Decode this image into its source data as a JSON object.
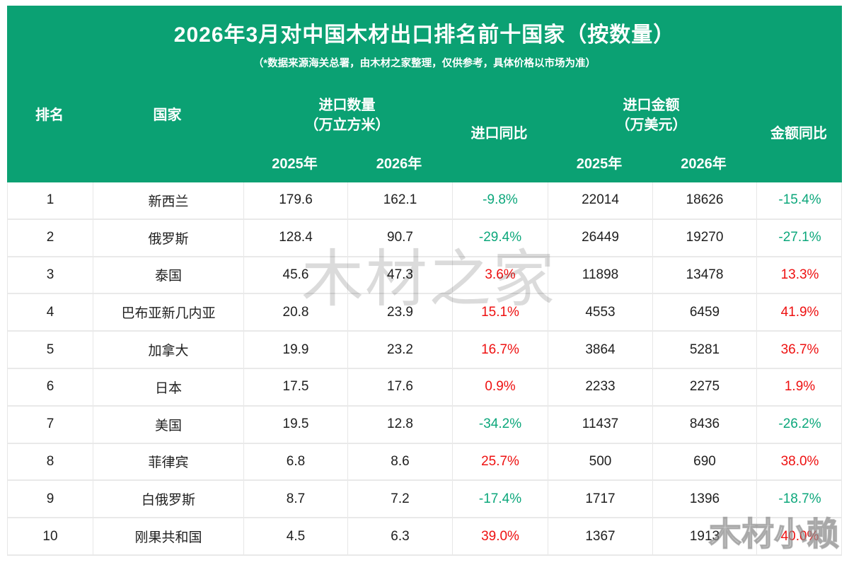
{
  "banner": {
    "title": "2026年3月对中国木材出口排名前十国家（按数量）",
    "subtitle": "（*数据来源海关总署，由木材之家整理，仅供参考，具体价格以市场为准）"
  },
  "table": {
    "headers": {
      "rank": "排名",
      "country": "国家",
      "qty_group_line1": "进口数量",
      "qty_group_line2": "（万立方米）",
      "import_yoy": "进口同比",
      "amount_group_line1": "进口金额",
      "amount_group_line2": "（万美元）",
      "amount_yoy": "金额同比",
      "year_2025": "2025年",
      "year_2026": "2026年"
    }
  },
  "chart_data": {
    "type": "table",
    "title": "2026年3月对中国木材出口排名前十国家（按数量）",
    "columns": [
      "排名",
      "国家",
      "进口数量2025年(万立方米)",
      "进口数量2026年(万立方米)",
      "进口同比",
      "进口金额2025年(万美元)",
      "进口金额2026年(万美元)",
      "金额同比"
    ],
    "rows": [
      {
        "rank": "1",
        "country": "新西兰",
        "qty_2025": "179.6",
        "qty_2026": "162.1",
        "import_yoy": "-9.8%",
        "import_yoy_dir": "down",
        "amt_2025": "22014",
        "amt_2026": "18626",
        "amount_yoy": "-15.4%",
        "amount_yoy_dir": "down"
      },
      {
        "rank": "2",
        "country": "俄罗斯",
        "qty_2025": "128.4",
        "qty_2026": "90.7",
        "import_yoy": "-29.4%",
        "import_yoy_dir": "down",
        "amt_2025": "26449",
        "amt_2026": "19270",
        "amount_yoy": "-27.1%",
        "amount_yoy_dir": "down"
      },
      {
        "rank": "3",
        "country": "泰国",
        "qty_2025": "45.6",
        "qty_2026": "47.3",
        "import_yoy": "3.6%",
        "import_yoy_dir": "up",
        "amt_2025": "11898",
        "amt_2026": "13478",
        "amount_yoy": "13.3%",
        "amount_yoy_dir": "up"
      },
      {
        "rank": "4",
        "country": "巴布亚新几内亚",
        "qty_2025": "20.8",
        "qty_2026": "23.9",
        "import_yoy": "15.1%",
        "import_yoy_dir": "up",
        "amt_2025": "4553",
        "amt_2026": "6459",
        "amount_yoy": "41.9%",
        "amount_yoy_dir": "up"
      },
      {
        "rank": "5",
        "country": "加拿大",
        "qty_2025": "19.9",
        "qty_2026": "23.2",
        "import_yoy": "16.7%",
        "import_yoy_dir": "up",
        "amt_2025": "3864",
        "amt_2026": "5281",
        "amount_yoy": "36.7%",
        "amount_yoy_dir": "up"
      },
      {
        "rank": "6",
        "country": "日本",
        "qty_2025": "17.5",
        "qty_2026": "17.6",
        "import_yoy": "0.9%",
        "import_yoy_dir": "up",
        "amt_2025": "2233",
        "amt_2026": "2275",
        "amount_yoy": "1.9%",
        "amount_yoy_dir": "up"
      },
      {
        "rank": "7",
        "country": "美国",
        "qty_2025": "19.5",
        "qty_2026": "12.8",
        "import_yoy": "-34.2%",
        "import_yoy_dir": "down",
        "amt_2025": "11437",
        "amt_2026": "8436",
        "amount_yoy": "-26.2%",
        "amount_yoy_dir": "down"
      },
      {
        "rank": "8",
        "country": "菲律宾",
        "qty_2025": "6.8",
        "qty_2026": "8.6",
        "import_yoy": "25.7%",
        "import_yoy_dir": "up",
        "amt_2025": "500",
        "amt_2026": "690",
        "amount_yoy": "38.0%",
        "amount_yoy_dir": "up"
      },
      {
        "rank": "9",
        "country": "白俄罗斯",
        "qty_2025": "8.7",
        "qty_2026": "7.2",
        "import_yoy": "-17.4%",
        "import_yoy_dir": "down",
        "amt_2025": "1717",
        "amt_2026": "1396",
        "amount_yoy": "-18.7%",
        "amount_yoy_dir": "down"
      },
      {
        "rank": "10",
        "country": "刚果共和国",
        "qty_2025": "4.5",
        "qty_2026": "6.3",
        "import_yoy": "39.0%",
        "import_yoy_dir": "up",
        "amt_2025": "1367",
        "amt_2026": "1913",
        "amount_yoy": "40.0%",
        "amount_yoy_dir": "up"
      }
    ]
  },
  "watermarks": {
    "center": "木材之家",
    "corner": "木材小赖"
  },
  "colors": {
    "green_bg": "#0ba173",
    "up_red": "#ee1111",
    "down_green": "#0ca77b"
  }
}
